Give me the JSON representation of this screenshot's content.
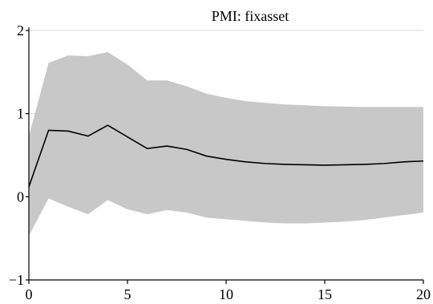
{
  "chart_data": {
    "type": "area",
    "title": "PMI: fixasset",
    "xlabel": "",
    "ylabel": "",
    "xlim": [
      0,
      20
    ],
    "ylim": [
      -1,
      2
    ],
    "x_ticks": [
      {
        "value": 0,
        "label": "0"
      },
      {
        "value": 5,
        "label": "5"
      },
      {
        "value": 10,
        "label": "10"
      },
      {
        "value": 15,
        "label": "15"
      },
      {
        "value": 20,
        "label": "20"
      }
    ],
    "y_ticks": [
      {
        "value": -1,
        "label": "−1"
      },
      {
        "value": 0,
        "label": "0"
      },
      {
        "value": 1,
        "label": "1"
      },
      {
        "value": 2,
        "label": "2"
      }
    ],
    "grid": "horizontal",
    "x": [
      0,
      1,
      2,
      3,
      4,
      5,
      6,
      7,
      8,
      9,
      10,
      11,
      12,
      13,
      14,
      15,
      16,
      17,
      18,
      19,
      20
    ],
    "series": [
      {
        "role": "estimate",
        "values": [
          0.12,
          0.8,
          0.79,
          0.73,
          0.86,
          0.72,
          0.58,
          0.61,
          0.57,
          0.49,
          0.45,
          0.42,
          0.4,
          0.39,
          0.385,
          0.38,
          0.385,
          0.39,
          0.4,
          0.42,
          0.43
        ]
      },
      {
        "role": "upper_band",
        "values": [
          0.73,
          1.61,
          1.7,
          1.69,
          1.74,
          1.59,
          1.4,
          1.4,
          1.33,
          1.24,
          1.19,
          1.15,
          1.13,
          1.11,
          1.1,
          1.09,
          1.085,
          1.08,
          1.08,
          1.08,
          1.08
        ]
      },
      {
        "role": "lower_band",
        "values": [
          -0.47,
          -0.02,
          -0.12,
          -0.21,
          -0.04,
          -0.15,
          -0.21,
          -0.16,
          -0.19,
          -0.25,
          -0.27,
          -0.29,
          -0.31,
          -0.32,
          -0.32,
          -0.31,
          -0.3,
          -0.28,
          -0.25,
          -0.22,
          -0.19
        ]
      }
    ],
    "colors": {
      "band_fill": "#c8c8c8",
      "line": "#000000",
      "grid": "#d9d9d9",
      "axis": "#000000"
    }
  }
}
